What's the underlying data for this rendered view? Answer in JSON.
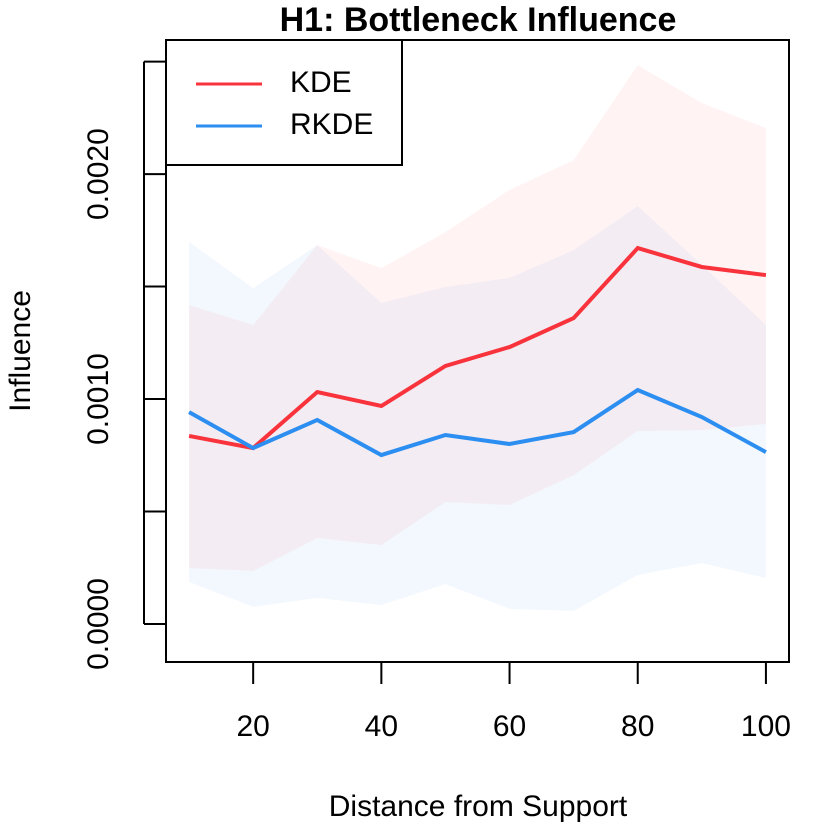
{
  "chart_data": {
    "type": "line",
    "title": "H1: Bottleneck Influence",
    "x_label": "Distance from Support",
    "y_label": "Influence",
    "x": [
      10,
      20,
      30,
      40,
      50,
      60,
      70,
      80,
      90,
      100
    ],
    "xlim": [
      6.4,
      103.6
    ],
    "xticks": [
      20,
      40,
      60,
      80,
      100
    ],
    "ylim": [
      -0.000169,
      0.002596
    ],
    "yticks": [
      {
        "value": 0,
        "label": "0.0000"
      },
      0.0005,
      {
        "value": 0.001,
        "label": "0.0010"
      },
      0.0015,
      {
        "value": 0.002,
        "label": "0.0020"
      },
      0.0025
    ],
    "legend": "topleft",
    "series": [
      {
        "name": "KDE",
        "color": "#f8333c",
        "values": [
          0.000836,
          0.000782,
          0.001031,
          0.000969,
          0.001147,
          0.001231,
          0.00136,
          0.001671,
          0.001587,
          0.001551
        ],
        "upper": [
          0.001418,
          0.001329,
          0.001684,
          0.001582,
          0.001742,
          0.001929,
          0.002062,
          0.002484,
          0.002316,
          0.002204
        ],
        "lower": [
          0.000249,
          0.000236,
          0.000382,
          0.000351,
          0.000542,
          0.000529,
          0.000662,
          0.000858,
          0.000862,
          0.000889
        ]
      },
      {
        "name": "RKDE",
        "color": "#2b8ef0",
        "values": [
          0.000942,
          0.000782,
          0.000907,
          0.000751,
          0.00084,
          0.0008,
          0.000853,
          0.00104,
          0.00092,
          0.000764
        ],
        "upper": [
          0.001698,
          0.001493,
          0.001684,
          0.001427,
          0.001498,
          0.001538,
          0.001662,
          0.001858,
          0.001596,
          0.001329
        ],
        "lower": [
          0.000187,
          7.6e-05,
          0.000116,
          8.4e-05,
          0.000178,
          6.7e-05,
          5.8e-05,
          0.000218,
          0.000271,
          0.000204
        ]
      }
    ]
  }
}
